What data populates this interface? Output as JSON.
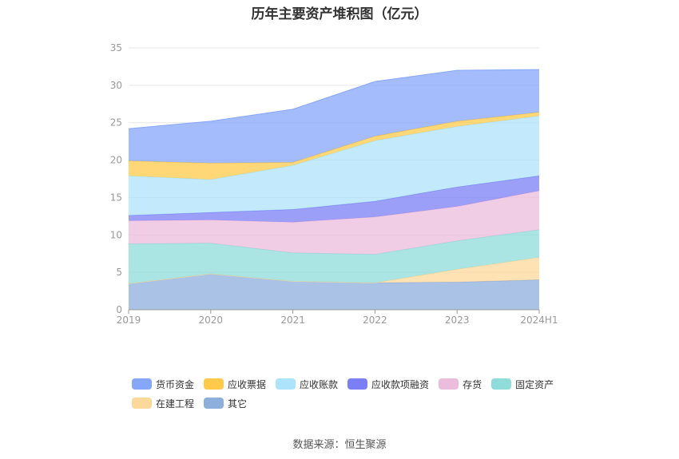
{
  "title": "历年主要资产堆积图（亿元）",
  "source": "数据来源：恒生聚源",
  "chart_data": {
    "type": "area",
    "stacked": true,
    "categories": [
      "2019",
      "2020",
      "2021",
      "2022",
      "2023",
      "2024H1"
    ],
    "ylim": [
      0,
      35
    ],
    "yticks": [
      0,
      5,
      10,
      15,
      20,
      25,
      30,
      35
    ],
    "grid": true,
    "legend_position": "bottom",
    "series": [
      {
        "name": "其它",
        "color": "#8eaedc",
        "values": [
          3.5,
          4.8,
          3.8,
          3.6,
          3.7,
          4.0
        ]
      },
      {
        "name": "在建工程",
        "color": "#fdd89b",
        "values": [
          0.0,
          0.0,
          0.0,
          0.0,
          1.7,
          3.0
        ]
      },
      {
        "name": "固定资产",
        "color": "#8fdcda",
        "values": [
          5.3,
          4.1,
          3.8,
          3.8,
          3.8,
          3.7
        ]
      },
      {
        "name": "存货",
        "color": "#ecbcdc",
        "values": [
          3.1,
          3.1,
          4.1,
          5.0,
          4.6,
          5.2
        ]
      },
      {
        "name": "应收款项融资",
        "color": "#7b7ff5",
        "values": [
          0.7,
          1.0,
          1.7,
          2.1,
          2.6,
          2.0
        ]
      },
      {
        "name": "应收账款",
        "color": "#ade3fb",
        "values": [
          5.3,
          4.4,
          5.9,
          8.1,
          8.1,
          8.0
        ]
      },
      {
        "name": "应收票据",
        "color": "#ffc94a",
        "values": [
          2.0,
          2.2,
          0.4,
          0.6,
          0.7,
          0.5
        ]
      },
      {
        "name": "货币资金",
        "color": "#86a6fa",
        "values": [
          4.3,
          5.6,
          7.1,
          7.3,
          6.8,
          5.7
        ]
      }
    ]
  },
  "legend_order": [
    "货币资金",
    "应收票据",
    "应收账款",
    "应收款项融资",
    "存货",
    "固定资产",
    "在建工程",
    "其它"
  ]
}
